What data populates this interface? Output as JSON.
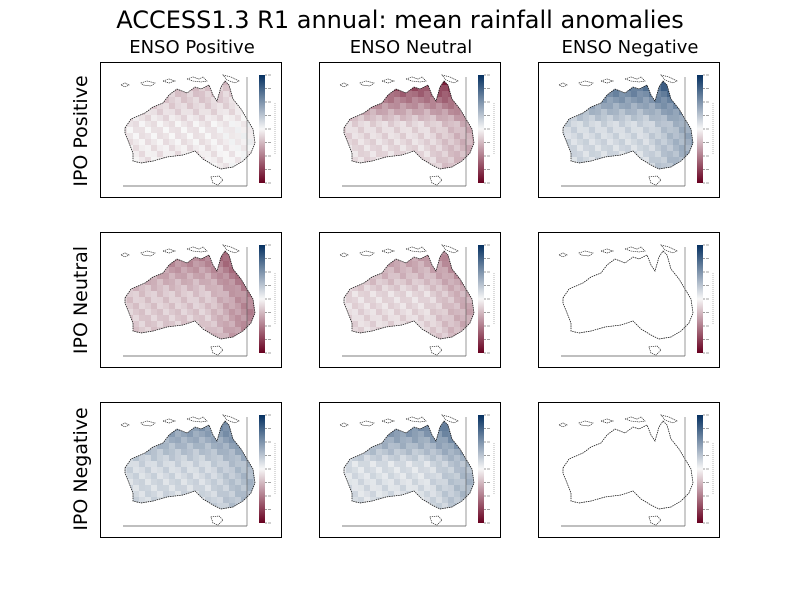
{
  "title": "ACCESS1.3 R1 annual: mean rainfall anomalies",
  "col_labels": [
    "ENSO Positive",
    "ENSO Neutral",
    "ENSO Negative"
  ],
  "row_labels": [
    "IPO Positive",
    "IPO Neutral",
    "IPO Negative"
  ],
  "colormap": {
    "name": "RdBu",
    "negative_color": "#67001f",
    "positive_color": "#053061",
    "neutral_color": "#f7f7f7",
    "range": [
      -1,
      1
    ]
  },
  "chart_data": {
    "type": "heatmap",
    "title": "ACCESS1.3 R1 annual: mean rainfall anomalies",
    "columns": [
      "ENSO Positive",
      "ENSO Neutral",
      "ENSO Negative"
    ],
    "rows": [
      "IPO Positive",
      "IPO Neutral",
      "IPO Negative"
    ],
    "region": "Australia",
    "panels": [
      {
        "row": "IPO Positive",
        "col": "ENSO Positive",
        "has_data": true,
        "mean_anomaly": -0.1,
        "north_anomaly": -0.2,
        "east_anomaly": 0.1
      },
      {
        "row": "IPO Positive",
        "col": "ENSO Neutral",
        "has_data": true,
        "mean_anomaly": -0.2,
        "north_anomaly": -0.7,
        "east_anomaly": -0.3
      },
      {
        "row": "IPO Positive",
        "col": "ENSO Negative",
        "has_data": true,
        "mean_anomaly": 0.25,
        "north_anomaly": 0.6,
        "east_anomaly": 0.4
      },
      {
        "row": "IPO Neutral",
        "col": "ENSO Positive",
        "has_data": true,
        "mean_anomaly": -0.3,
        "north_anomaly": -0.35,
        "east_anomaly": -0.5
      },
      {
        "row": "IPO Neutral",
        "col": "ENSO Neutral",
        "has_data": true,
        "mean_anomaly": -0.2,
        "north_anomaly": -0.3,
        "east_anomaly": -0.35
      },
      {
        "row": "IPO Neutral",
        "col": "ENSO Negative",
        "has_data": false
      },
      {
        "row": "IPO Negative",
        "col": "ENSO Positive",
        "has_data": true,
        "mean_anomaly": 0.25,
        "north_anomaly": 0.4,
        "east_anomaly": 0.3
      },
      {
        "row": "IPO Negative",
        "col": "ENSO Neutral",
        "has_data": true,
        "mean_anomaly": 0.2,
        "north_anomaly": 0.5,
        "east_anomaly": 0.35
      },
      {
        "row": "IPO Negative",
        "col": "ENSO Negative",
        "has_data": false
      }
    ]
  }
}
